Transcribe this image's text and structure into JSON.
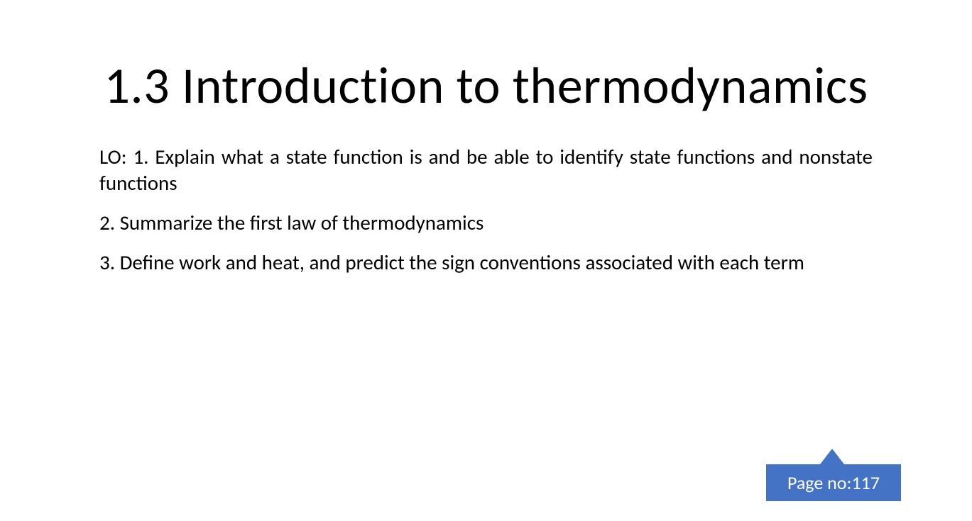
{
  "slide": {
    "title": "1.3 Introduction to thermodynamics",
    "learning_objectives": {
      "item1": "LO: 1. Explain what a state function is and be able to identify state functions and nonstate functions",
      "item2": "2. Summarize the first law of thermodynamics",
      "item3": "3. Define work and heat, and predict the sign conventions associated with each term"
    },
    "callout": {
      "label": "Page no:117",
      "background_color": "#4472c4",
      "text_color": "#ffffff"
    },
    "styling": {
      "background_color": "#ffffff",
      "title_fontsize": 72,
      "title_fontweight": 300,
      "body_fontsize": 29,
      "text_color": "#000000",
      "callout_fontsize": 26
    }
  }
}
